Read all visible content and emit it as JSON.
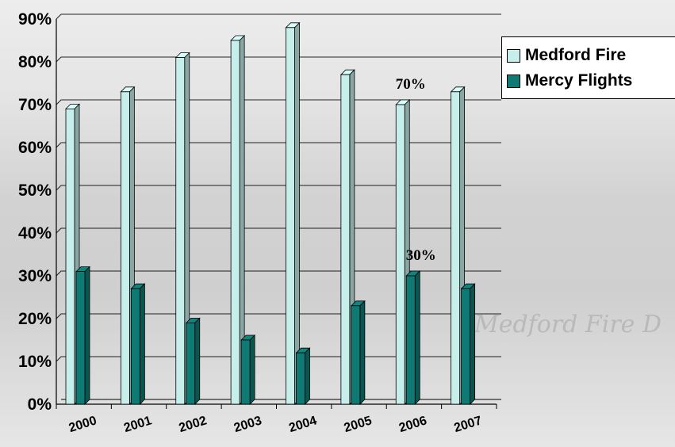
{
  "background": {
    "watermark_text": "Medford Fire D"
  },
  "legend": {
    "items": [
      {
        "label": "Medford Fire",
        "color": "#c6eeea"
      },
      {
        "label": "Mercy Flights",
        "color": "#0f7a74"
      }
    ]
  },
  "chart_data": {
    "type": "bar",
    "categories": [
      "2000",
      "2001",
      "2002",
      "2003",
      "2004",
      "2005",
      "2006",
      "2007"
    ],
    "series": [
      {
        "name": "Medford Fire",
        "values": [
          69,
          73,
          81,
          85,
          88,
          77,
          70,
          73
        ],
        "color": "#c6eeea"
      },
      {
        "name": "Mercy Flights",
        "values": [
          31,
          27,
          19,
          15,
          12,
          23,
          30,
          27
        ],
        "color": "#0f7a74"
      }
    ],
    "ylim": [
      0,
      90
    ],
    "yticks": [
      "0%",
      "10%",
      "20%",
      "30%",
      "40%",
      "50%",
      "60%",
      "70%",
      "80%",
      "90%"
    ],
    "annotations": [
      {
        "text": "70%",
        "category": "2006",
        "series": "Medford Fire"
      },
      {
        "text": "30%",
        "category": "2006",
        "series": "Mercy Flights"
      }
    ],
    "grid": true,
    "legend_position": "right",
    "title": "",
    "xlabel": "",
    "ylabel": ""
  }
}
